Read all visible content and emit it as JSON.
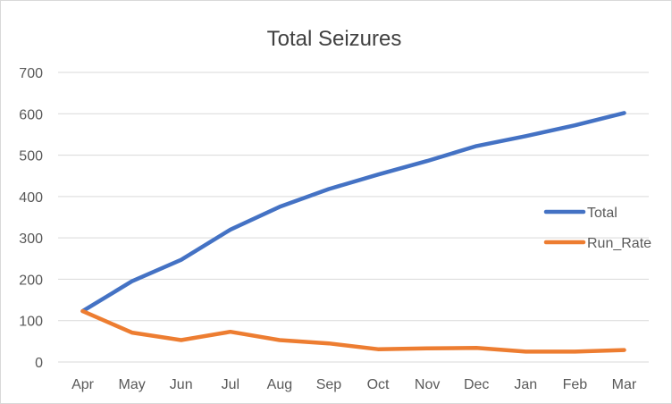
{
  "chart_data": {
    "type": "line",
    "title": "Total Seizures",
    "categories": [
      "Apr",
      "May",
      "Jun",
      "Jul",
      "Aug",
      "Sep",
      "Oct",
      "Nov",
      "Dec",
      "Jan",
      "Feb",
      "Mar"
    ],
    "series": [
      {
        "name": "Total",
        "color": "#4472c4",
        "values": [
          123,
          195,
          247,
          320,
          375,
          418,
          453,
          486,
          522,
          546,
          572,
          602
        ]
      },
      {
        "name": "Run_Rate",
        "color": "#ed7d31",
        "values": [
          123,
          71,
          53,
          73,
          53,
          45,
          31,
          33,
          34,
          25,
          25,
          29
        ]
      }
    ],
    "ylim": [
      0,
      700
    ],
    "yticks": [
      0,
      100,
      200,
      300,
      400,
      500,
      600,
      700
    ],
    "grid": true,
    "legend_position": "right",
    "xlabel": "",
    "ylabel": ""
  }
}
